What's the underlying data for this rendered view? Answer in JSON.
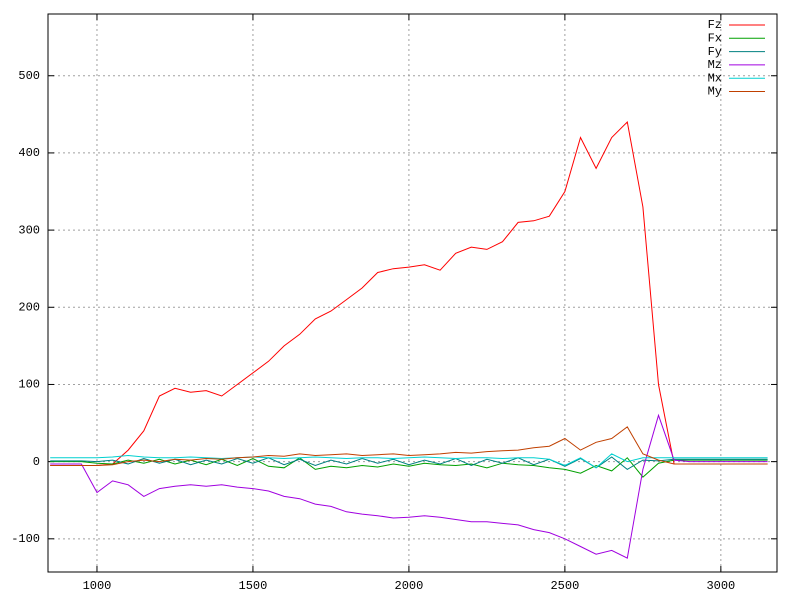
{
  "chart_data": {
    "type": "line",
    "x": [
      850,
      900,
      950,
      1000,
      1050,
      1100,
      1150,
      1200,
      1250,
      1300,
      1350,
      1400,
      1450,
      1500,
      1550,
      1600,
      1650,
      1700,
      1750,
      1800,
      1850,
      1900,
      1950,
      2000,
      2050,
      2100,
      2150,
      2200,
      2250,
      2300,
      2350,
      2400,
      2450,
      2500,
      2550,
      2600,
      2650,
      2700,
      2750,
      2800,
      2850,
      2900,
      2950,
      3000,
      3050,
      3100,
      3150
    ],
    "series": [
      {
        "name": "Fz",
        "color": "#ff0000",
        "values": [
          -5,
          -5,
          -5,
          -5,
          -3,
          15,
          40,
          85,
          95,
          90,
          92,
          85,
          100,
          115,
          130,
          150,
          165,
          185,
          195,
          210,
          225,
          245,
          250,
          252,
          255,
          248,
          270,
          278,
          275,
          285,
          310,
          312,
          318,
          350,
          420,
          380,
          420,
          440,
          330,
          100,
          -3,
          -3,
          -3,
          -3,
          -3,
          -3,
          -3
        ]
      },
      {
        "name": "Fx",
        "color": "#00a000",
        "values": [
          0,
          0,
          0,
          -2,
          -3,
          2,
          -2,
          3,
          -3,
          2,
          -4,
          3,
          -5,
          4,
          -6,
          -8,
          5,
          -10,
          -6,
          -8,
          -5,
          -7,
          -3,
          -6,
          -2,
          -4,
          -5,
          -3,
          -8,
          -2,
          -4,
          -5,
          -8,
          -10,
          -15,
          -5,
          -12,
          5,
          -20,
          -2,
          2,
          2,
          2,
          2,
          2,
          2,
          2
        ]
      },
      {
        "name": "Fy",
        "color": "#008080",
        "values": [
          1,
          1,
          1,
          0,
          2,
          -3,
          4,
          -2,
          3,
          -4,
          2,
          -3,
          4,
          -2,
          5,
          -4,
          3,
          -5,
          2,
          -3,
          4,
          -2,
          3,
          -4,
          2,
          -3,
          4,
          -5,
          3,
          -2,
          5,
          -4,
          3,
          -6,
          4,
          -8,
          6,
          -10,
          2,
          1,
          3,
          3,
          3,
          3,
          3,
          3,
          3
        ]
      },
      {
        "name": "Mz",
        "color": "#a000e0",
        "values": [
          -3,
          -3,
          -3,
          -40,
          -25,
          -30,
          -45,
          -35,
          -32,
          -30,
          -32,
          -30,
          -33,
          -35,
          -38,
          -45,
          -48,
          -55,
          -58,
          -65,
          -68,
          -70,
          -73,
          -72,
          -70,
          -72,
          -75,
          -78,
          -78,
          -80,
          -82,
          -88,
          -92,
          -100,
          -110,
          -120,
          -115,
          -125,
          -10,
          60,
          2,
          0,
          0,
          0,
          0,
          0,
          0
        ]
      },
      {
        "name": "Mx",
        "color": "#00d0d0",
        "values": [
          5,
          5,
          5,
          5,
          6,
          8,
          6,
          5,
          5,
          6,
          5,
          4,
          5,
          6,
          5,
          4,
          5,
          6,
          5,
          4,
          5,
          5,
          4,
          5,
          6,
          5,
          4,
          5,
          5,
          4,
          5,
          5,
          3,
          -5,
          5,
          -8,
          10,
          0,
          5,
          5,
          5,
          5,
          5,
          5,
          5,
          5,
          5
        ]
      },
      {
        "name": "My",
        "color": "#c04000",
        "values": [
          -5,
          -5,
          -5,
          -5,
          -4,
          0,
          2,
          0,
          3,
          2,
          4,
          3,
          5,
          6,
          8,
          7,
          10,
          8,
          9,
          10,
          8,
          9,
          10,
          8,
          9,
          10,
          12,
          11,
          13,
          14,
          15,
          18,
          20,
          30,
          15,
          25,
          30,
          45,
          10,
          2,
          -3,
          -3,
          -3,
          -3,
          -3,
          -3,
          -3
        ]
      }
    ],
    "xlim": [
      843,
      3180
    ],
    "ylim": [
      -143,
      580
    ],
    "xticks": [
      1000,
      1500,
      2000,
      2500,
      3000
    ],
    "yticks": [
      -100,
      0,
      100,
      200,
      300,
      400,
      500
    ],
    "grid": true,
    "legend": "top-right"
  }
}
